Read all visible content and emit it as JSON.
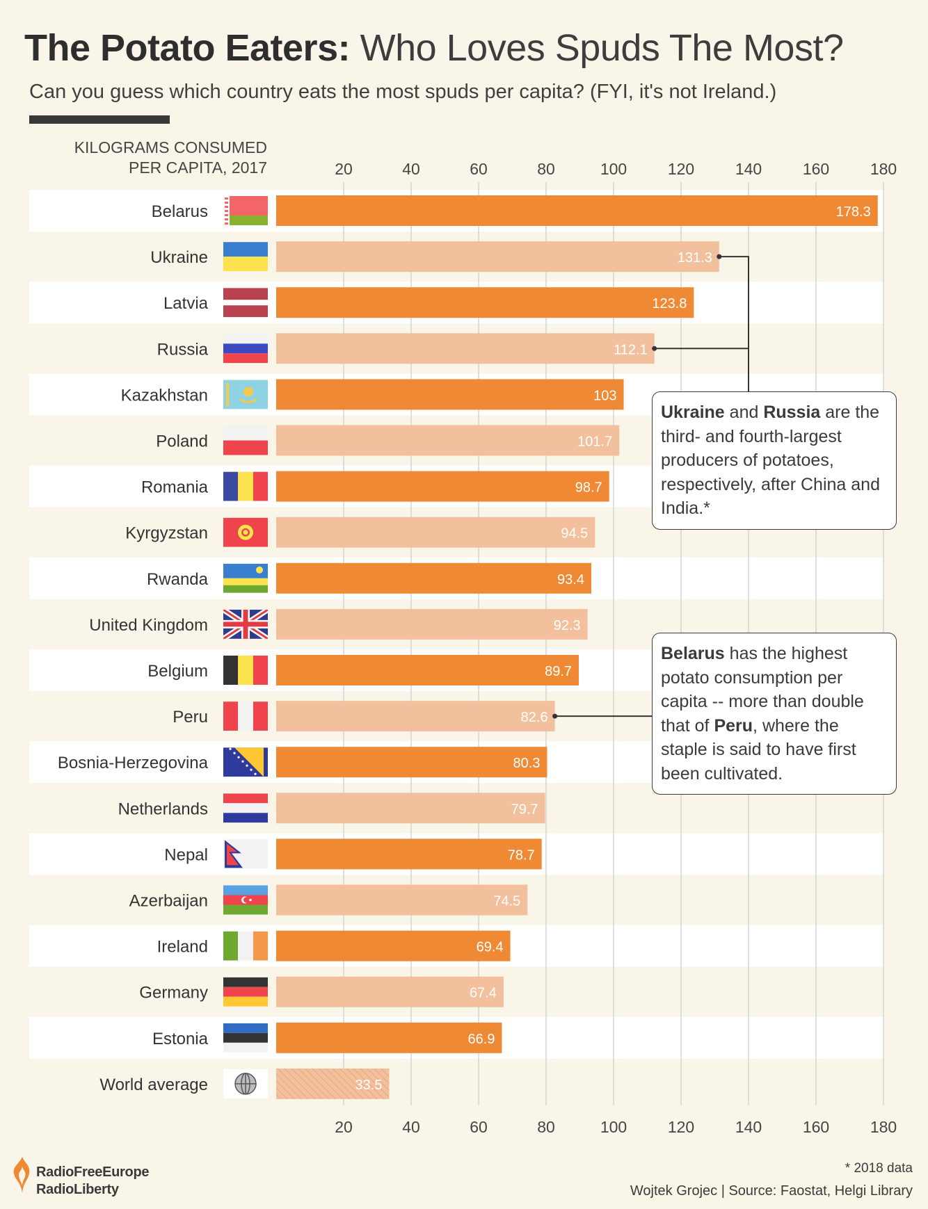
{
  "header": {
    "title_bold": "The Potato Eaters:",
    "title_rest": "Who Loves Spuds The Most?",
    "subtitle": "Can you guess which country eats the most spuds per capita? (FYI, it's not Ireland.)",
    "unit_line1": "KILOGRAMS CONSUMED",
    "unit_line2": "PER CAPITA, 2017"
  },
  "colors": {
    "bar_dark": "#ef8934",
    "bar_light": "#f3c09d",
    "stripe_row": "#ffffff",
    "background": "#f9f6e9",
    "grid": "#d3d3d3"
  },
  "chart_data": {
    "type": "bar",
    "orientation": "horizontal",
    "categories": [
      "Belarus",
      "Ukraine",
      "Latvia",
      "Russia",
      "Kazakhstan",
      "Poland",
      "Romania",
      "Kyrgyzstan",
      "Rwanda",
      "United Kingdom",
      "Belgium",
      "Peru",
      "Bosnia-Herzegovina",
      "Netherlands",
      "Nepal",
      "Azerbaijan",
      "Ireland",
      "Germany",
      "Estonia",
      "World average"
    ],
    "values": [
      178.3,
      131.3,
      123.8,
      112.1,
      103,
      101.7,
      98.7,
      94.5,
      93.4,
      92.3,
      89.7,
      82.6,
      80.3,
      79.7,
      78.7,
      74.5,
      69.4,
      67.4,
      66.9,
      33.5
    ],
    "value_labels": [
      "178.3",
      "131.3",
      "123.8",
      "112.1",
      "103",
      "101.7",
      "98.7",
      "94.5",
      "93.4",
      "92.3",
      "89.7",
      "82.6",
      "80.3",
      "79.7",
      "78.7",
      "74.5",
      "69.4",
      "67.4",
      "66.9",
      "33.5"
    ],
    "xticks": [
      "20",
      "40",
      "60",
      "80",
      "100",
      "120",
      "140",
      "160",
      "180"
    ],
    "xtick_values": [
      20,
      40,
      60,
      80,
      100,
      120,
      140,
      160,
      180
    ],
    "xlim": [
      0,
      180
    ],
    "xlabel": "KILOGRAMS CONSUMED PER CAPITA, 2017",
    "grid": true,
    "axis_labels_top_and_bottom": true,
    "flag_icons": [
      "belarus-flag-icon",
      "ukraine-flag-icon",
      "latvia-flag-icon",
      "russia-flag-icon",
      "kazakhstan-flag-icon",
      "poland-flag-icon",
      "romania-flag-icon",
      "kyrgyzstan-flag-icon",
      "rwanda-flag-icon",
      "uk-flag-icon",
      "belgium-flag-icon",
      "peru-flag-icon",
      "bosnia-flag-icon",
      "netherlands-flag-icon",
      "nepal-flag-icon",
      "azerbaijan-flag-icon",
      "ireland-flag-icon",
      "germany-flag-icon",
      "estonia-flag-icon",
      "globe-icon"
    ]
  },
  "callouts": {
    "first_b1": "Ukraine",
    "first_t1": " and ",
    "first_b2": "Russia",
    "first_t2": " are the third- and fourth-largest producers of potatoes, respectively, after China and India.*",
    "second_b1": "Belarus",
    "second_t1": " has the highest potato consumption per capita -- more than double that of ",
    "second_b2": "Peru",
    "second_t2": ", where the staple is said to have first been cultivated."
  },
  "footer": {
    "logo_line1": "RadioFreeEurope",
    "logo_line2": "RadioLiberty",
    "note": "* 2018 data",
    "credit": "Wojtek Grojec | Source: Faostat, Helgi Library"
  }
}
